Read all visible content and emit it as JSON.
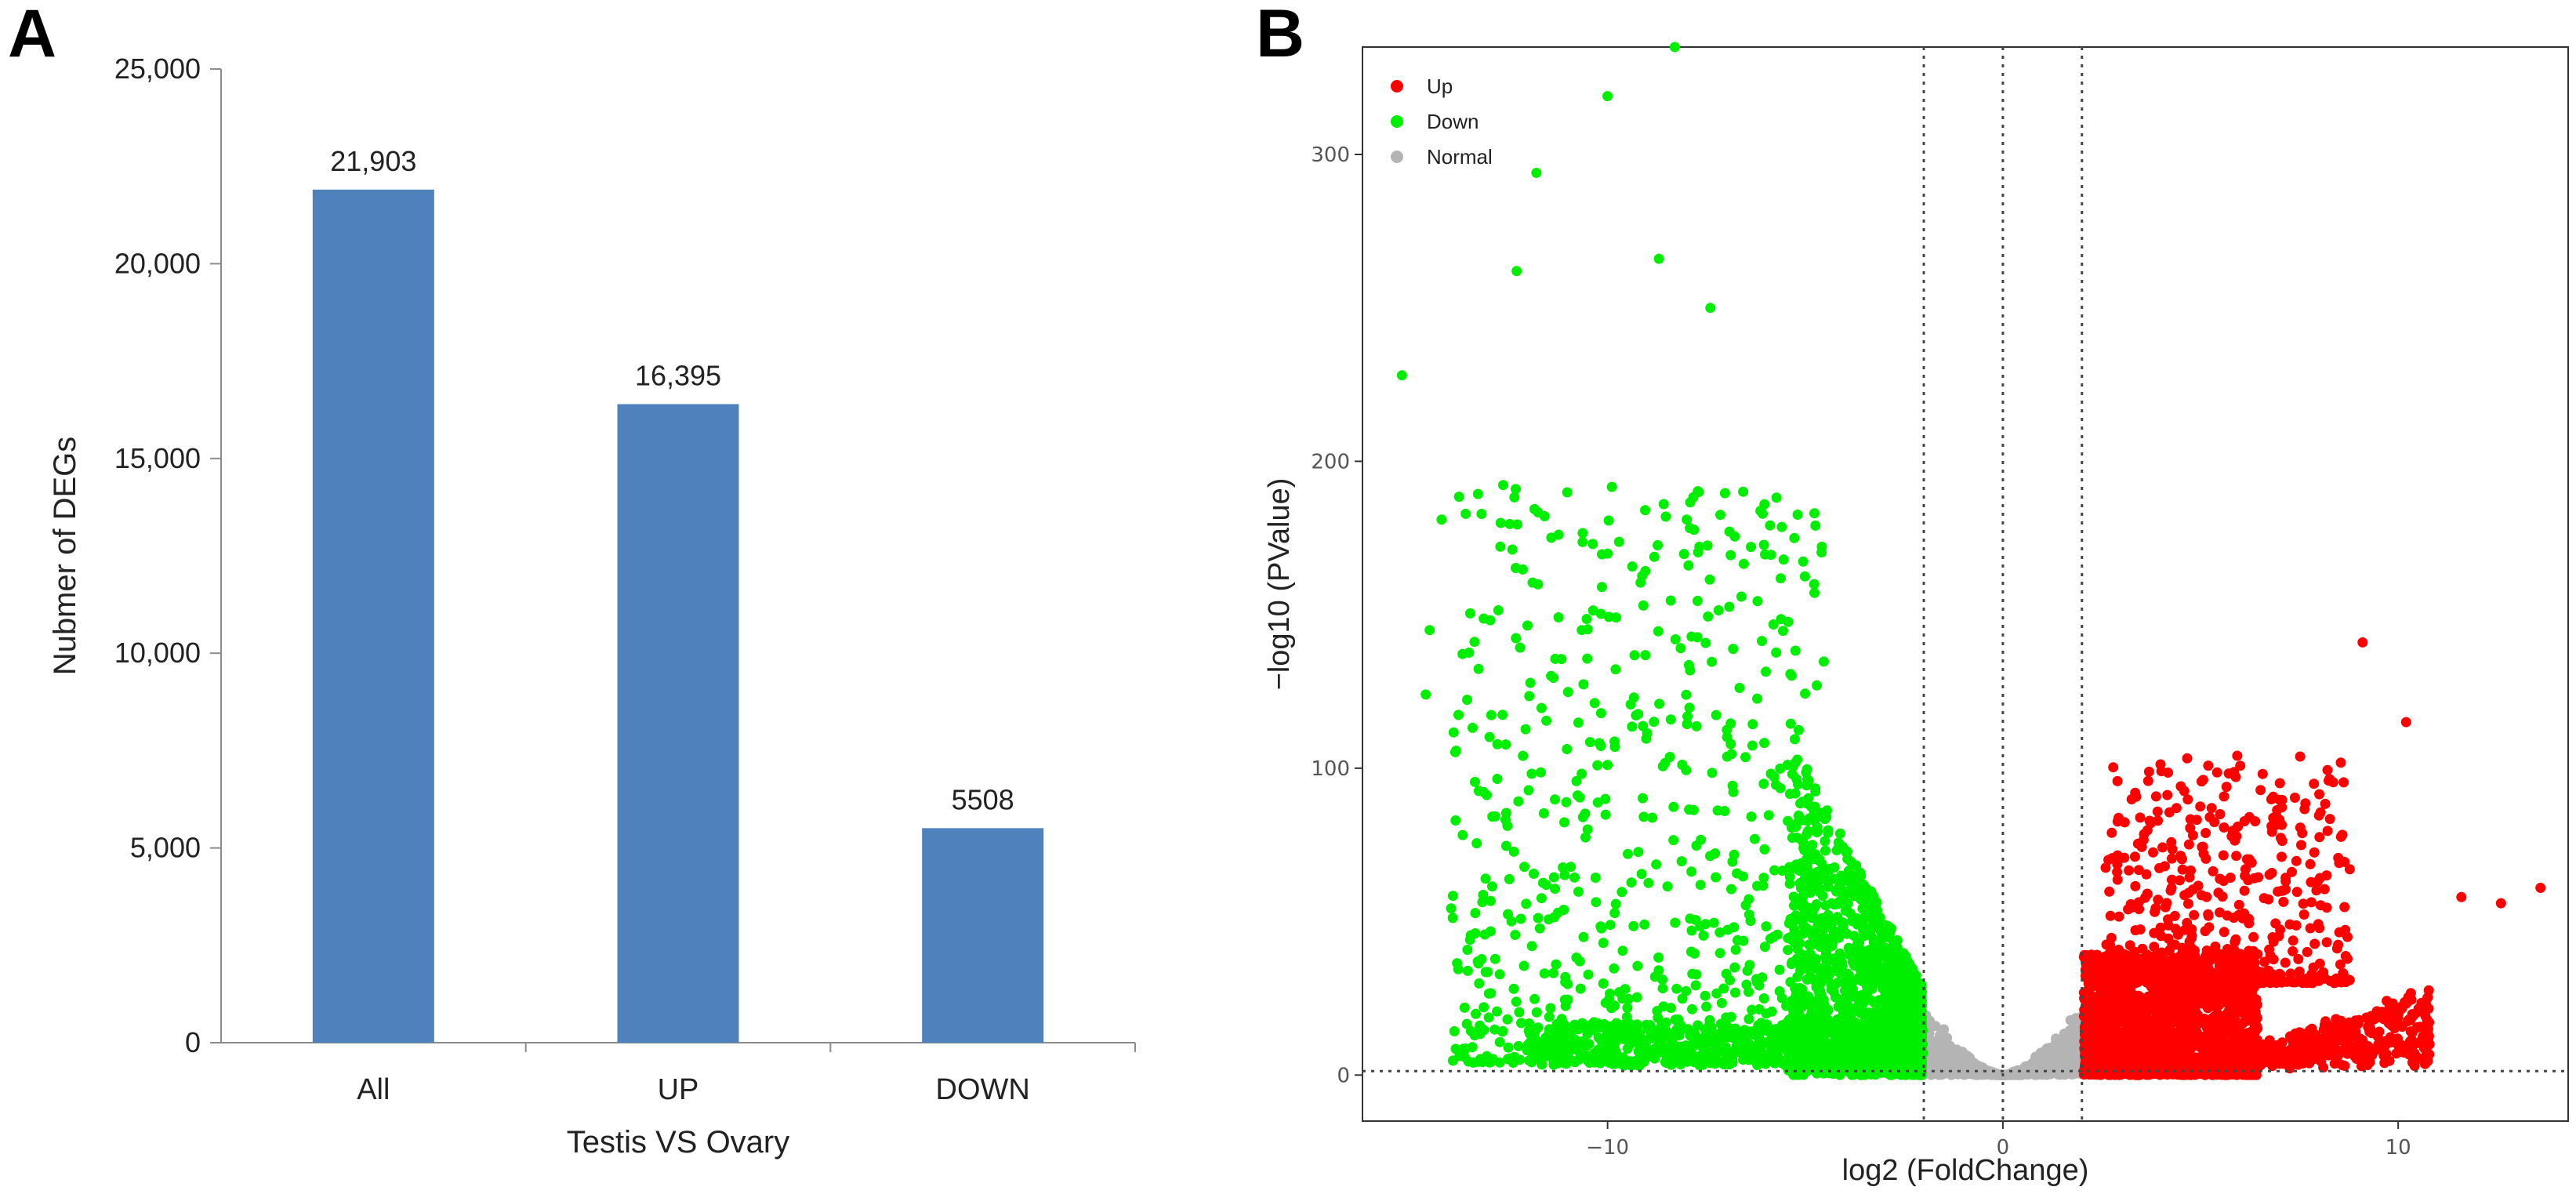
{
  "chart_data": [
    {
      "panel": "A",
      "type": "bar",
      "title": "",
      "xlabel": "Testis VS Ovary",
      "ylabel": "Nubmer of DEGs",
      "categories": [
        "All",
        "UP",
        "DOWN"
      ],
      "values": [
        21903,
        16395,
        5508
      ],
      "data_labels": [
        "21,903",
        "16,395",
        "5508"
      ],
      "ylim": [
        0,
        25000
      ],
      "yticks": [
        0,
        5000,
        10000,
        15000,
        20000,
        25000
      ],
      "ytick_labels": [
        "0",
        "5,000",
        "10,000",
        "15,000",
        "20,000",
        "25,000"
      ],
      "bar_color": "#4f81bd",
      "grid": false
    },
    {
      "panel": "B",
      "type": "scatter",
      "title": "",
      "xlabel": "log2 (FoldChange)",
      "ylabel": "−log10 (PValue)",
      "xlim": [
        -16.2,
        14.3
      ],
      "ylim": [
        -15,
        335
      ],
      "xticks": [
        -10,
        0,
        10
      ],
      "xtick_labels": [
        "−10",
        "0",
        "10"
      ],
      "yticks": [
        0,
        100,
        200,
        300
      ],
      "ytick_labels": [
        "0",
        "100",
        "200",
        "300"
      ],
      "fold_change_thresholds": [
        -2,
        0,
        2
      ],
      "pvalue_threshold": 1.3,
      "legend_position": "top-left",
      "series": [
        {
          "name": "Up",
          "color": "#ff0000"
        },
        {
          "name": "Down",
          "color": "#00ee00"
        },
        {
          "name": "Normal",
          "color": "#b4b4b4"
        }
      ],
      "notable_points": [
        {
          "series": "Down",
          "x": -8.3,
          "y": 335
        },
        {
          "series": "Down",
          "x": -10.0,
          "y": 319
        },
        {
          "series": "Down",
          "x": -11.8,
          "y": 294
        },
        {
          "series": "Down",
          "x": -8.7,
          "y": 266
        },
        {
          "series": "Down",
          "x": -12.3,
          "y": 262
        },
        {
          "series": "Down",
          "x": -7.4,
          "y": 250
        },
        {
          "series": "Down",
          "x": -15.2,
          "y": 228
        },
        {
          "series": "Down",
          "x": -14.2,
          "y": 181
        },
        {
          "series": "Down",
          "x": -14.5,
          "y": 145
        },
        {
          "series": "Down",
          "x": -14.6,
          "y": 124
        },
        {
          "series": "Up",
          "x": 9.1,
          "y": 141
        },
        {
          "series": "Up",
          "x": 10.2,
          "y": 115
        },
        {
          "series": "Up",
          "x": 13.6,
          "y": 61
        },
        {
          "series": "Up",
          "x": 12.6,
          "y": 56
        },
        {
          "series": "Up",
          "x": 11.6,
          "y": 58
        }
      ]
    }
  ],
  "panels": {
    "a_letter": "A",
    "b_letter": "B"
  }
}
